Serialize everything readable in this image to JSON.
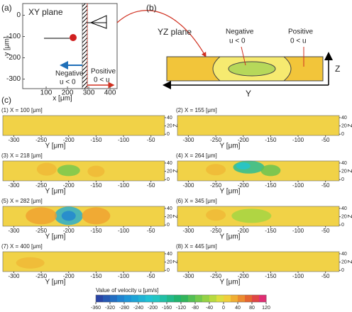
{
  "panel_a": {
    "label": "(a)",
    "title": "XY plane",
    "y_label": "y [μm]",
    "x_label": "x [μm]",
    "xlim": [
      -10,
      433
    ],
    "xticks": [
      100,
      200,
      300,
      400
    ],
    "ylim": [
      -345,
      55
    ],
    "yticks": [
      0,
      -100,
      -200,
      -300
    ],
    "negative": "Negative",
    "negative_cond": "u < 0",
    "positive": "Positive",
    "positive_cond": "0 < u"
  },
  "panel_b": {
    "label": "(b)",
    "title": "YZ plane",
    "negative": "Negative",
    "negative_cond": "u < 0",
    "positive": "Positive",
    "positive_cond": "0 < u",
    "y_axis": "Y",
    "z_axis": "Z"
  },
  "panel_c": {
    "label": "(c)",
    "x_label": "Y [μm]",
    "z_label": "Z",
    "ylim": [
      -320,
      -25
    ],
    "yticks": [
      -300,
      -250,
      -200,
      -150,
      -100,
      -50
    ],
    "zlim": [
      -3,
      45
    ],
    "zticks": [
      0,
      20,
      40
    ],
    "maps": [
      {
        "title": "(1) X = 100 [μm]"
      },
      {
        "title": "(2) X = 155 [μm]"
      },
      {
        "title": "(3) X = 218 [μm]"
      },
      {
        "title": "(4) X = 264 [μm]"
      },
      {
        "title": "(5) X = 282 [μm]"
      },
      {
        "title": "(6) X = 345 [μm]"
      },
      {
        "title": "(7) X = 400 [μm]"
      },
      {
        "title": "(8) X = 445 [μm]"
      }
    ]
  },
  "colorbar": {
    "title": "Value of velocity u [μm/s]",
    "ticks": [
      -360,
      -320,
      -280,
      -240,
      -200,
      -160,
      -120,
      -80,
      -40,
      0,
      40,
      80,
      120
    ]
  }
}
